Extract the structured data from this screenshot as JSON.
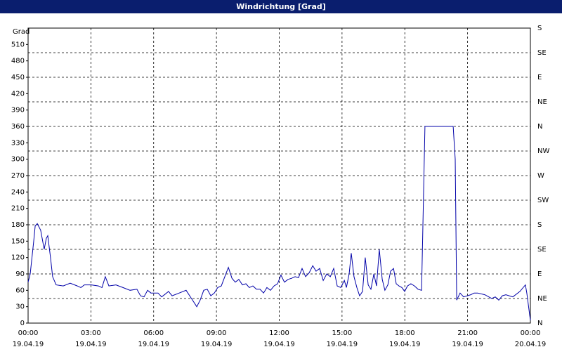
{
  "chart_data": {
    "type": "line",
    "title": "Windrichtung [Grad]",
    "y_label": "Grad",
    "series": [
      {
        "name": "Windrichtung",
        "color": "#0000a8",
        "x": [
          0,
          0.1,
          0.27,
          0.34,
          0.44,
          0.6,
          0.77,
          0.87,
          0.94,
          1.07,
          1.17,
          1.34,
          1.68,
          2.01,
          2.35,
          2.52,
          2.69,
          3.02,
          3.36,
          3.53,
          3.69,
          3.86,
          4.2,
          4.53,
          4.87,
          5.2,
          5.37,
          5.54,
          5.71,
          5.87,
          6.21,
          6.38,
          6.55,
          6.71,
          6.88,
          7.22,
          7.55,
          7.72,
          7.89,
          8.06,
          8.22,
          8.39,
          8.56,
          8.73,
          8.9,
          9.06,
          9.23,
          9.4,
          9.57,
          9.74,
          9.9,
          10.07,
          10.24,
          10.41,
          10.57,
          10.74,
          10.91,
          11.08,
          11.25,
          11.41,
          11.58,
          11.75,
          11.92,
          12.08,
          12.25,
          12.42,
          12.59,
          12.76,
          12.92,
          13.09,
          13.26,
          13.43,
          13.6,
          13.76,
          13.93,
          14.1,
          14.27,
          14.44,
          14.6,
          14.77,
          14.94,
          15.11,
          15.21,
          15.34,
          15.44,
          15.57,
          15.71,
          15.84,
          15.98,
          16.11,
          16.25,
          16.38,
          16.52,
          16.65,
          16.78,
          16.92,
          17.05,
          17.19,
          17.32,
          17.46,
          17.59,
          17.72,
          17.86,
          17.99,
          18.13,
          18.29,
          18.46,
          18.63,
          18.8,
          18.96,
          20.31,
          20.41,
          20.48,
          20.64,
          20.81,
          21.15,
          21.31,
          21.48,
          21.82,
          22.15,
          22.32,
          22.49,
          22.66,
          22.83,
          23.16,
          23.5,
          23.76,
          23.83,
          24
        ],
        "values": [
          75,
          90,
          150,
          178,
          182,
          170,
          135,
          155,
          160,
          120,
          85,
          70,
          68,
          73,
          68,
          65,
          70,
          70,
          68,
          65,
          85,
          68,
          70,
          65,
          60,
          62,
          50,
          48,
          60,
          55,
          55,
          48,
          53,
          58,
          50,
          55,
          60,
          50,
          40,
          30,
          42,
          60,
          62,
          50,
          55,
          65,
          68,
          85,
          102,
          82,
          75,
          80,
          70,
          72,
          65,
          68,
          62,
          62,
          55,
          65,
          60,
          68,
          72,
          88,
          75,
          80,
          82,
          85,
          83,
          100,
          85,
          92,
          105,
          95,
          100,
          78,
          90,
          85,
          100,
          68,
          65,
          78,
          65,
          90,
          128,
          85,
          65,
          50,
          58,
          120,
          70,
          62,
          90,
          68,
          135,
          80,
          60,
          70,
          95,
          100,
          72,
          68,
          65,
          58,
          68,
          72,
          68,
          62,
          60,
          360,
          360,
          300,
          42,
          55,
          48,
          52,
          55,
          55,
          52,
          45,
          48,
          42,
          50,
          52,
          48,
          58,
          70,
          55,
          5
        ]
      }
    ],
    "xlim": [
      0,
      24
    ],
    "xticks": [
      {
        "value": 0,
        "label": "00:00",
        "date": "19.04.19"
      },
      {
        "value": 3,
        "label": "03:00",
        "date": "19.04.19"
      },
      {
        "value": 6,
        "label": "06:00",
        "date": "19.04.19"
      },
      {
        "value": 9,
        "label": "09:00",
        "date": "19.04.19"
      },
      {
        "value": 12,
        "label": "12:00",
        "date": "19.04.19"
      },
      {
        "value": 15,
        "label": "15:00",
        "date": "19.04.19"
      },
      {
        "value": 18,
        "label": "18:00",
        "date": "19.04.19"
      },
      {
        "value": 21,
        "label": "21:00",
        "date": "19.04.19"
      },
      {
        "value": 24,
        "label": "00:00",
        "date": "20.04.19"
      }
    ],
    "ylim": [
      0,
      540
    ],
    "yticks": [
      0,
      30,
      60,
      90,
      120,
      150,
      180,
      210,
      240,
      270,
      300,
      330,
      360,
      390,
      420,
      450,
      480,
      510
    ],
    "y2lim": [
      0,
      540
    ],
    "y2ticks": [
      {
        "value": 0,
        "label": "N"
      },
      {
        "value": 45,
        "label": "NE"
      },
      {
        "value": 90,
        "label": "E"
      },
      {
        "value": 135,
        "label": "SE"
      },
      {
        "value": 180,
        "label": "S"
      },
      {
        "value": 225,
        "label": "SW"
      },
      {
        "value": 270,
        "label": "W"
      },
      {
        "value": 315,
        "label": "NW"
      },
      {
        "value": 360,
        "label": "N"
      },
      {
        "value": 405,
        "label": "NE"
      },
      {
        "value": 450,
        "label": "E"
      },
      {
        "value": 495,
        "label": "SE"
      },
      {
        "value": 540,
        "label": "S"
      }
    ],
    "grid": true
  }
}
